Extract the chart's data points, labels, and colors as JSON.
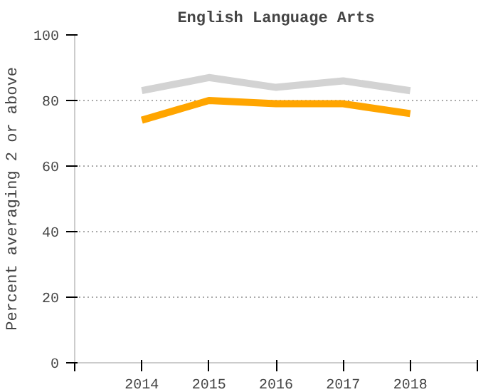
{
  "chart_data": {
    "type": "line",
    "title": "English Language Arts",
    "ylabel": "Percent averaging 2 or above",
    "x": [
      2014,
      2015,
      2016,
      2017,
      2018
    ],
    "series": [
      {
        "color": "#d3d3d3",
        "values": [
          83,
          87,
          84,
          86,
          83
        ]
      },
      {
        "color": "#ffa500",
        "values": [
          74,
          80,
          79,
          79,
          76
        ]
      }
    ],
    "xlim": [
      2013,
      2019
    ],
    "xticks": [
      {
        "value": 2013,
        "label": null
      },
      2014,
      2015,
      2016,
      2017,
      2018,
      {
        "value": 2019,
        "label": null
      }
    ],
    "ylim": [
      0,
      100
    ],
    "yticks": [
      0,
      20,
      40,
      60,
      80,
      100
    ],
    "grid": "y",
    "marker": "none",
    "line_style": "solid"
  }
}
